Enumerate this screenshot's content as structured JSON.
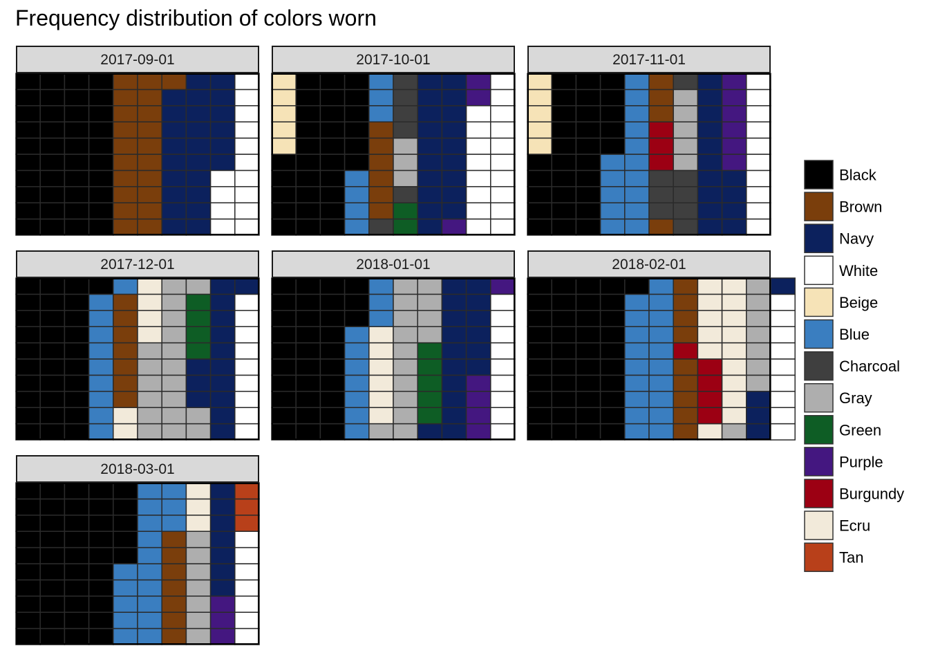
{
  "chart_data": {
    "type": "heatmap",
    "title": "Frequency distribution of colors worn",
    "grid_size": {
      "cols": 10,
      "rows": 10
    },
    "colors": {
      "Black": "#000000",
      "Brown": "#7A3E0C",
      "Navy": "#0C215D",
      "White": "#FFFFFF",
      "Beige": "#F6E3B7",
      "Blue": "#3A7EC0",
      "Charcoal": "#3F3F3F",
      "Gray": "#AEAEAE",
      "Green": "#0E5D25",
      "Purple": "#441780",
      "Burgundy": "#9C0013",
      "Ecru": "#F2EADA",
      "Tan": "#B8401A"
    },
    "legend": [
      "Black",
      "Brown",
      "Navy",
      "White",
      "Beige",
      "Blue",
      "Charcoal",
      "Gray",
      "Green",
      "Purple",
      "Burgundy",
      "Ecru",
      "Tan"
    ],
    "panels": [
      {
        "label": "2017-09-01",
        "columns": [
          [
            "Black",
            10
          ],
          [
            "Black",
            10
          ],
          [
            "Black",
            10
          ],
          [
            "Black",
            10
          ],
          [
            "Brown",
            10
          ],
          [
            "Brown",
            10
          ],
          [
            "Navy",
            9
          ],
          [
            "Brown",
            1
          ],
          [
            "Navy",
            10
          ],
          [
            "White",
            4
          ],
          [
            "Navy",
            6
          ],
          [
            "White",
            10
          ]
        ]
      },
      {
        "label": "2017-10-01",
        "columns": [
          [
            "Black",
            5
          ],
          [
            "Beige",
            5
          ],
          [
            "Black",
            10
          ],
          [
            "Black",
            10
          ],
          [
            "Blue",
            4
          ],
          [
            "Black",
            6
          ],
          [
            "Charcoal",
            1
          ],
          [
            "Brown",
            6
          ],
          [
            "Blue",
            3
          ],
          [
            "Green",
            2
          ],
          [
            "Charcoal",
            1
          ],
          [
            "Gray",
            3
          ],
          [
            "Charcoal",
            4
          ],
          [
            "Navy",
            10
          ],
          [
            "Purple",
            1
          ],
          [
            "Navy",
            9
          ],
          [
            "White",
            8
          ],
          [
            "Purple",
            2
          ],
          [
            "White",
            10
          ]
        ]
      },
      {
        "label": "2017-11-01",
        "columns": [
          [
            "Black",
            5
          ],
          [
            "Beige",
            5
          ],
          [
            "Black",
            10
          ],
          [
            "Black",
            10
          ],
          [
            "Blue",
            5
          ],
          [
            "Black",
            5
          ],
          [
            "Blue",
            10
          ],
          [
            "Brown",
            1
          ],
          [
            "Charcoal",
            3
          ],
          [
            "Burgundy",
            3
          ],
          [
            "Brown",
            3
          ],
          [
            "Charcoal",
            4
          ],
          [
            "Gray",
            5
          ],
          [
            "Charcoal",
            1
          ],
          [
            "Navy",
            10
          ],
          [
            "Navy",
            4
          ],
          [
            "Purple",
            6
          ],
          [
            "White",
            10
          ]
        ]
      },
      {
        "label": "2017-12-01",
        "columns": [
          [
            "Black",
            10
          ],
          [
            "Black",
            10
          ],
          [
            "Black",
            10
          ],
          [
            "Blue",
            9
          ],
          [
            "Black",
            1
          ],
          [
            "Ecru",
            2
          ],
          [
            "Brown",
            7
          ],
          [
            "Blue",
            1
          ],
          [
            "Gray",
            6
          ],
          [
            "Ecru",
            4
          ],
          [
            "Gray",
            10
          ],
          [
            "Gray",
            2
          ],
          [
            "Navy",
            3
          ],
          [
            "Green",
            4
          ],
          [
            "Gray",
            1
          ],
          [
            "Navy",
            10
          ],
          [
            "White",
            9
          ],
          [
            "Navy",
            1
          ]
        ]
      },
      {
        "label": "2018-01-01",
        "columns": [
          [
            "Black",
            10
          ],
          [
            "Black",
            10
          ],
          [
            "Black",
            10
          ],
          [
            "Blue",
            7
          ],
          [
            "Black",
            3
          ],
          [
            "Gray",
            1
          ],
          [
            "Ecru",
            6
          ],
          [
            "Blue",
            3
          ],
          [
            "Gray",
            10
          ],
          [
            "Navy",
            1
          ],
          [
            "Green",
            5
          ],
          [
            "Gray",
            4
          ],
          [
            "Navy",
            10
          ],
          [
            "Purple",
            4
          ],
          [
            "Navy",
            6
          ],
          [
            "White",
            9
          ],
          [
            "Purple",
            1
          ]
        ]
      },
      {
        "label": "2018-02-01",
        "columns": [
          [
            "Black",
            10
          ],
          [
            "Black",
            10
          ],
          [
            "Black",
            10
          ],
          [
            "Black",
            10
          ],
          [
            "Blue",
            9
          ],
          [
            "Black",
            1
          ],
          [
            "Blue",
            10
          ],
          [
            "Brown",
            5
          ],
          [
            "Burgundy",
            1
          ],
          [
            "Brown",
            4
          ],
          [
            "Ecru",
            1
          ],
          [
            "Burgundy",
            4
          ],
          [
            "Ecru",
            5
          ],
          [
            "Gray",
            1
          ],
          [
            "Ecru",
            9
          ],
          [
            "Navy",
            3
          ],
          [
            "Gray",
            7
          ],
          [
            "White",
            9
          ],
          [
            "Navy",
            1
          ]
        ]
      },
      {
        "label": "2018-03-01",
        "columns": [
          [
            "Black",
            10
          ],
          [
            "Black",
            10
          ],
          [
            "Black",
            10
          ],
          [
            "Black",
            10
          ],
          [
            "Blue",
            5
          ],
          [
            "Black",
            5
          ],
          [
            "Blue",
            10
          ],
          [
            "Brown",
            7
          ],
          [
            "Blue",
            3
          ],
          [
            "Gray",
            7
          ],
          [
            "Ecru",
            3
          ],
          [
            "Purple",
            3
          ],
          [
            "Navy",
            7
          ],
          [
            "White",
            7
          ],
          [
            "Tan",
            3
          ]
        ]
      }
    ]
  }
}
